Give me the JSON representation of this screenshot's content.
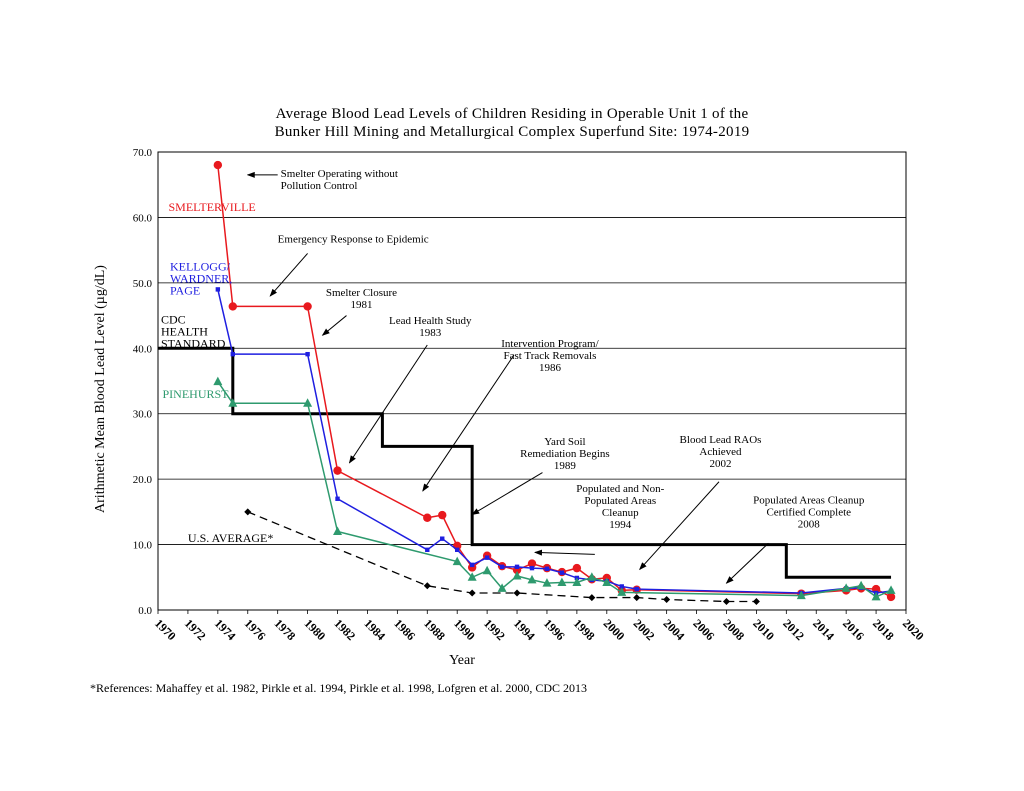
{
  "chart_data": {
    "type": "line",
    "title_lines": [
      "Average Blood Lead Levels of Children Residing in Operable Unit 1 of the",
      "Bunker Hill Mining and Metallurgical Complex Superfund Site: 1974-2019"
    ],
    "xlabel": "Year",
    "ylabel": "Arithmetic Mean Blood Lead Level (µg/dL)",
    "xlim": [
      1970,
      2020
    ],
    "ylim": [
      0,
      70
    ],
    "x_ticks": [
      "1970",
      "1972",
      "1974",
      "1976",
      "1978",
      "1980",
      "1982",
      "1984",
      "1986",
      "1988",
      "1990",
      "1992",
      "1994",
      "1996",
      "1998",
      "2000",
      "2002",
      "2004",
      "2006",
      "2008",
      "2010",
      "2012",
      "2014",
      "2016",
      "2018",
      "2020"
    ],
    "y_ticks": [
      "0.0",
      "10.0",
      "20.0",
      "30.0",
      "40.0",
      "50.0",
      "60.0",
      "70.0"
    ],
    "grid": "horizontal",
    "series": [
      {
        "name": "SMELTERVILLE",
        "label_lines": [
          "SMELTERVILLE"
        ],
        "color": "#e8191e",
        "marker": "circle",
        "style": "solid",
        "x": [
          1974,
          1975,
          1980,
          1982,
          1988,
          1989,
          1990,
          1991,
          1992,
          1993,
          1994,
          1995,
          1996,
          1997,
          1998,
          1999,
          2000,
          2001,
          2002,
          2013,
          2016,
          2017,
          2018,
          2019
        ],
        "y": [
          68.0,
          46.4,
          46.4,
          21.3,
          14.1,
          14.5,
          9.8,
          6.5,
          8.3,
          6.7,
          6.1,
          7.1,
          6.4,
          5.8,
          6.4,
          4.7,
          4.9,
          3.0,
          3.1,
          2.5,
          3.0,
          3.3,
          3.2,
          2.0
        ]
      },
      {
        "name": "KELLOGG/WARDNER/PAGE",
        "label_lines": [
          "KELLOGG/",
          "WARDNER,",
          "PAGE"
        ],
        "color": "#1f1fe0",
        "marker": "square",
        "style": "solid",
        "x": [
          1974,
          1975,
          1980,
          1982,
          1988,
          1989,
          1990,
          1991,
          1992,
          1993,
          1994,
          1995,
          1996,
          1997,
          1998,
          1999,
          2000,
          2001,
          2002,
          2013,
          2016,
          2017,
          2018,
          2019
        ],
        "y": [
          49.0,
          39.1,
          39.1,
          17.0,
          9.2,
          10.9,
          9.2,
          6.9,
          8.0,
          6.6,
          6.6,
          6.4,
          6.3,
          5.7,
          4.9,
          4.6,
          4.4,
          3.6,
          3.2,
          2.6,
          3.3,
          3.4,
          2.6,
          2.9
        ]
      },
      {
        "name": "PINEHURST",
        "label_lines": [
          "PINEHURST"
        ],
        "color": "#2e9a6e",
        "marker": "triangle",
        "style": "solid",
        "x": [
          1974,
          1975,
          1980,
          1982,
          1990,
          1991,
          1992,
          1993,
          1994,
          1995,
          1996,
          1997,
          1998,
          1999,
          2000,
          2001,
          2013,
          2016,
          2017,
          2018,
          2019
        ],
        "y": [
          34.9,
          31.6,
          31.6,
          12.0,
          7.4,
          5.0,
          6.0,
          3.3,
          5.2,
          4.6,
          4.1,
          4.2,
          4.2,
          5.0,
          4.2,
          2.7,
          2.2,
          3.3,
          3.7,
          2.0,
          3.0
        ]
      },
      {
        "name": "U.S. AVERAGE*",
        "label_lines": [
          "U.S. AVERAGE*"
        ],
        "color": "#000000",
        "marker": "diamond",
        "style": "dashed",
        "x": [
          1976,
          1988,
          1991,
          1994,
          1999,
          2002,
          2004,
          2008,
          2010
        ],
        "y": [
          15.0,
          3.7,
          2.6,
          2.6,
          1.9,
          1.9,
          1.6,
          1.3,
          1.3
        ]
      },
      {
        "name": "CDC HEALTH STANDARD",
        "label_lines": [
          "CDC",
          "HEALTH",
          "STANDARD"
        ],
        "color": "#000000",
        "marker": "none",
        "style": "step",
        "x": [
          1970,
          1975,
          1975,
          1985,
          1985,
          1991,
          1991,
          2012,
          2012,
          2019
        ],
        "y": [
          40,
          40,
          30,
          30,
          25,
          25,
          10,
          10,
          5,
          5
        ]
      }
    ],
    "annotations": [
      {
        "lines": [
          "Smelter Operating without",
          "Pollution Control"
        ],
        "x": 1978.2,
        "y": 66.2,
        "align": "start",
        "arrow_from": [
          1978.0,
          66.5
        ],
        "arrow_to": [
          1976.0,
          66.5
        ]
      },
      {
        "lines": [
          "Emergency Response to Epidemic"
        ],
        "x": 1978.0,
        "y": 56.2,
        "align": "start",
        "arrow_from": [
          1980.0,
          54.5
        ],
        "arrow_to": [
          1977.5,
          48.0
        ]
      },
      {
        "lines": [
          "Smelter Closure",
          "1981"
        ],
        "x": 1983.6,
        "y": 48.0,
        "align": "middle",
        "arrow_from": [
          1982.6,
          45.0
        ],
        "arrow_to": [
          1981.0,
          42.0
        ]
      },
      {
        "lines": [
          "Lead Health Study",
          "1983"
        ],
        "x": 1988.2,
        "y": 43.7,
        "align": "middle",
        "arrow_from": [
          1988.0,
          40.5
        ],
        "arrow_to": [
          1982.8,
          22.5
        ]
      },
      {
        "lines": [
          "Intervention Program/",
          "Fast Track Removals",
          "1986"
        ],
        "x": 1996.2,
        "y": 40.2,
        "align": "middle",
        "arrow_from": [
          1993.8,
          39.0
        ],
        "arrow_to": [
          1987.7,
          18.2
        ]
      },
      {
        "lines": [
          "Yard Soil",
          "Remediation Begins",
          "1989"
        ],
        "x": 1997.2,
        "y": 25.2,
        "align": "middle",
        "arrow_from": [
          1995.7,
          21.0
        ],
        "arrow_to": [
          1991.0,
          14.6
        ]
      },
      {
        "lines": [
          "Populated and Non-",
          "Populated Areas",
          "Cleanup",
          "1994"
        ],
        "x": 2000.9,
        "y": 18.0,
        "align": "middle",
        "arrow_from": [
          1999.2,
          8.5
        ],
        "arrow_to": [
          1995.2,
          8.8
        ]
      },
      {
        "lines": [
          "Blood Lead RAOs",
          "Achieved",
          "2002"
        ],
        "x": 2007.6,
        "y": 25.5,
        "align": "middle",
        "arrow_from": [
          2007.5,
          19.6
        ],
        "arrow_to": [
          2002.2,
          6.2
        ]
      },
      {
        "lines": [
          "Populated Areas Cleanup",
          "Certified Complete",
          "2008"
        ],
        "x": 2013.5,
        "y": 16.3,
        "align": "middle",
        "arrow_from": [
          2010.8,
          10.2
        ],
        "arrow_to": [
          2008.0,
          4.1
        ]
      }
    ],
    "footnote": "*References: Mahaffey et al. 1982, Pirkle et al. 1994, Pirkle et al. 1998, Lofgren et al. 2000, CDC 2013"
  }
}
